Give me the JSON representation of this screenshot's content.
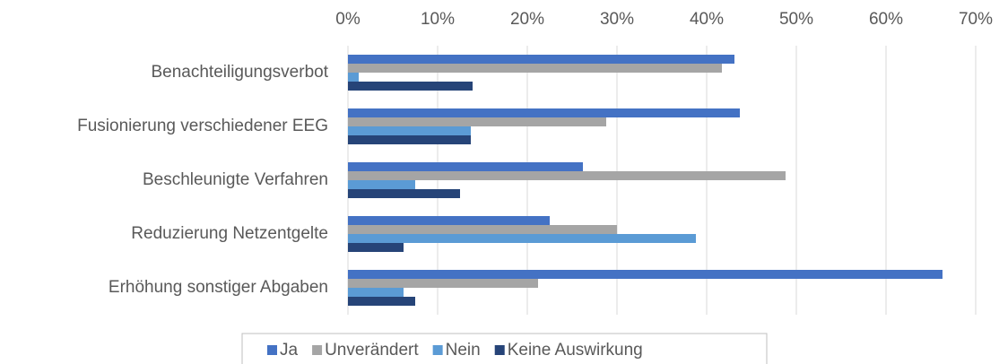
{
  "chart_data": {
    "type": "hbar",
    "categories": [
      "Benachteiligungsverbot",
      "Fusionierung verschiedener EEG",
      "Beschleunigte Verfahren",
      "Reduzierung Netzentgelte",
      "Erhöhung sonstiger Abgaben"
    ],
    "series": [
      {
        "name": "Ja",
        "color": "#4472c4",
        "values": [
          43.1,
          43.7,
          26.2,
          22.5,
          66.3
        ]
      },
      {
        "name": "Unverändert",
        "color": "#a5a5a5",
        "values": [
          41.7,
          28.8,
          48.8,
          30.0,
          21.2
        ]
      },
      {
        "name": "Nein",
        "color": "#5b9bd5",
        "values": [
          1.2,
          13.7,
          7.5,
          38.8,
          6.2
        ]
      },
      {
        "name": "Keine Auswirkung",
        "color": "#264478",
        "values": [
          13.9,
          13.7,
          12.5,
          6.2,
          7.5
        ]
      }
    ],
    "xlim": [
      0,
      70
    ],
    "xticks": [
      {
        "value": 0,
        "label": "0%"
      },
      {
        "value": 10,
        "label": "10%"
      },
      {
        "value": 20,
        "label": "20%"
      },
      {
        "value": 30,
        "label": "30%"
      },
      {
        "value": 40,
        "label": "40%"
      },
      {
        "value": 50,
        "label": "50%"
      },
      {
        "value": 60,
        "label": "60%"
      },
      {
        "value": 70,
        "label": "70%"
      }
    ],
    "grid": true,
    "legend": "bottom"
  }
}
